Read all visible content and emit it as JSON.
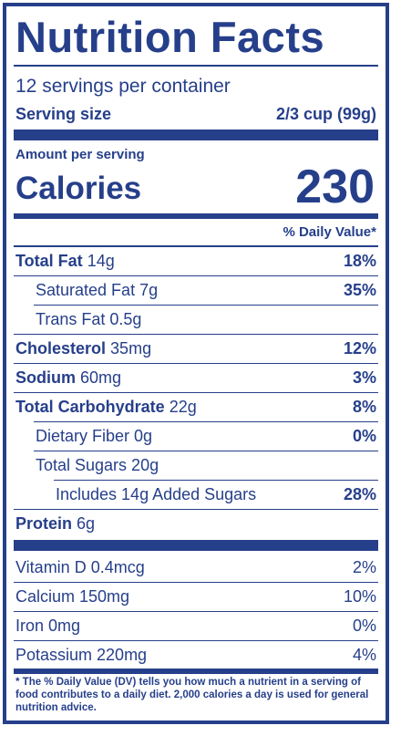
{
  "title": "Nutrition Facts",
  "servings_per_container": "12 servings per container",
  "serving_size_label": "Serving size",
  "serving_size_value": "2/3 cup (99g)",
  "amount_per_serving": "Amount per serving",
  "calories_label": "Calories",
  "calories_value": "230",
  "daily_value_header": "% Daily Value*",
  "nutrients": [
    {
      "name": "Total Fat",
      "amount": "14g",
      "dv": "18%"
    },
    {
      "name": "Saturated Fat 7g",
      "dv": "35%"
    },
    {
      "name": "Trans Fat 0.5g",
      "dv": ""
    },
    {
      "name": "Cholesterol",
      "amount": "35mg",
      "dv": "12%"
    },
    {
      "name": "Sodium",
      "amount": "60mg",
      "dv": "3%"
    },
    {
      "name": "Total Carbohydrate",
      "amount": "22g",
      "dv": "8%"
    },
    {
      "name": "Dietary Fiber 0g",
      "dv": "0%"
    },
    {
      "name": "Total Sugars 20g",
      "dv": ""
    },
    {
      "name": "Includes 14g Added Sugars",
      "dv": "28%"
    },
    {
      "name": "Protein",
      "amount": "6g",
      "dv": ""
    }
  ],
  "vitamins": [
    {
      "name": "Vitamin D 0.4mcg",
      "dv": "2%"
    },
    {
      "name": "Calcium 150mg",
      "dv": "10%"
    },
    {
      "name": "Iron 0mg",
      "dv": "0%"
    },
    {
      "name": "Potassium 220mg",
      "dv": "4%"
    }
  ],
  "footnote": "* The % Daily Value (DV) tells you how much a nutrient in a serving of food contributes to a daily diet. 2,000 calories a day is used for general nutrition advice.",
  "colors": {
    "ink": "#263f8a",
    "background": "#ffffff"
  }
}
